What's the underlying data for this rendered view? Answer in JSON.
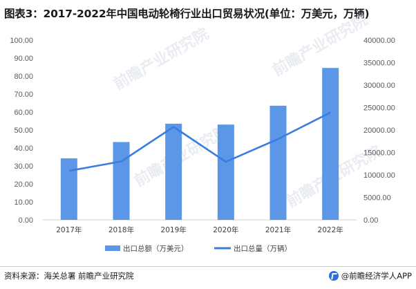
{
  "title": "图表3：2017-2022年中国电动轮椅行业出口贸易状况(单位：万美元，万辆)",
  "footer": {
    "source": "资料来源：海关总署 前瞻产业研究院",
    "brand": "@前瞻经济学人APP"
  },
  "watermark": {
    "text": "前瞻产业研究院"
  },
  "colors": {
    "bar": "#5b97e6",
    "line": "#3a7de0",
    "axis": "#d0d0d0"
  },
  "chart_data": {
    "type": "bar",
    "categories": [
      "2017年",
      "2018年",
      "2019年",
      "2020年",
      "2021年",
      "2022年"
    ],
    "series": [
      {
        "name": "出口总额（万美元）",
        "type": "bar",
        "axis": "left",
        "values": [
          34.2,
          43.3,
          53.5,
          53.0,
          63.5,
          84.5
        ]
      },
      {
        "name": "出口总量（万辆）",
        "type": "line",
        "axis": "right",
        "values": [
          10900,
          13000,
          20700,
          12900,
          18000,
          23900
        ]
      }
    ],
    "y_left": {
      "ylim": [
        0,
        100
      ],
      "ticks": [
        "0.00",
        "10.00",
        "20.00",
        "30.00",
        "40.00",
        "50.00",
        "60.00",
        "70.00",
        "80.00",
        "90.00",
        "100.00"
      ]
    },
    "y_right": {
      "ylim": [
        0,
        40000
      ],
      "ticks": [
        "0.00",
        "5000.00",
        "10000.00",
        "15000.00",
        "20000.00",
        "25000.00",
        "30000.00",
        "35000.00",
        "40000.00"
      ]
    },
    "grid": false,
    "legend_position": "bottom"
  }
}
